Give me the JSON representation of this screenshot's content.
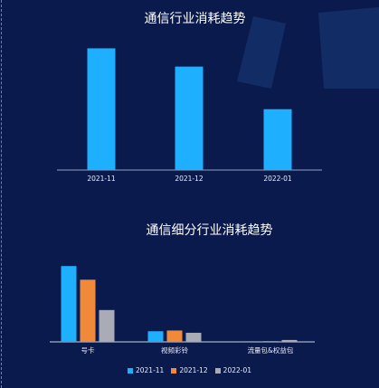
{
  "chart_data": [
    {
      "type": "bar",
      "title": "通信行业消耗趋势",
      "categories": [
        "2021-11",
        "2021-12",
        "2022-01"
      ],
      "series": [
        {
          "values": [
            100,
            85,
            50
          ],
          "color": "#1eb0ff"
        }
      ],
      "ylim": [
        0,
        110
      ],
      "grid": false,
      "legend": "none"
    },
    {
      "type": "bar",
      "title": "通信细分行业消耗趋势",
      "categories": [
        "号卡",
        "视频彩铃",
        "流量包&权益包"
      ],
      "series": [
        {
          "name": "2021-11",
          "values": [
            100,
            14,
            1
          ],
          "color": "#1eb0ff"
        },
        {
          "name": "2021-12",
          "values": [
            82,
            15,
            1
          ],
          "color": "#f08a3a"
        },
        {
          "name": "2022-01",
          "values": [
            42,
            12,
            2.5
          ],
          "color": "#a9acb5"
        }
      ],
      "ylim": [
        0,
        105
      ],
      "grid": false,
      "legend": "bottom-center"
    }
  ]
}
